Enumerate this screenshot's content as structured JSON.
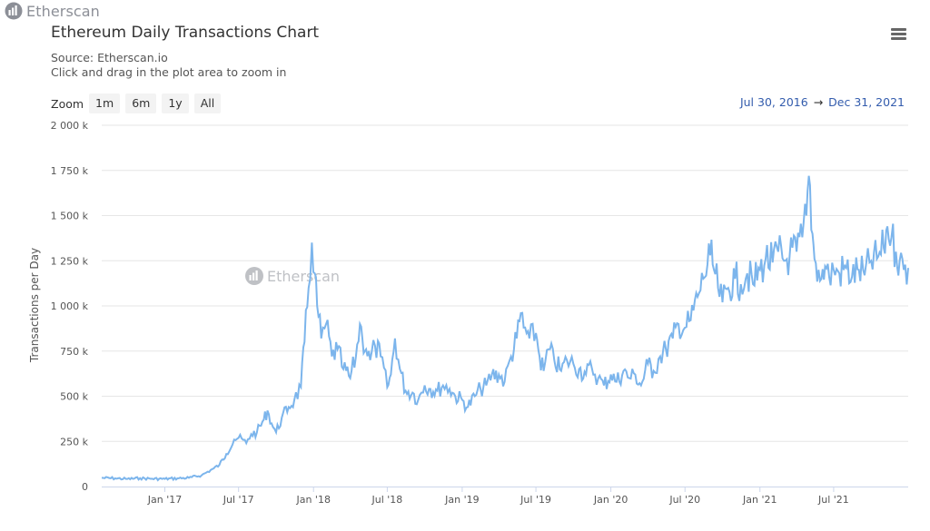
{
  "brand": {
    "name": "Etherscan",
    "logo_icon": "etherscan-bars-icon"
  },
  "header": {
    "title": "Ethereum Daily Transactions Chart",
    "source": "Source: Etherscan.io",
    "hint": "Click and drag in the plot area to zoom in"
  },
  "menu": {
    "icon": "hamburger-menu-icon"
  },
  "zoom": {
    "label": "Zoom",
    "buttons": [
      "1m",
      "6m",
      "1y",
      "All"
    ]
  },
  "range": {
    "from": "Jul 30, 2016",
    "arrow": "→",
    "to": "Dec 31, 2021"
  },
  "watermark": {
    "text": "Etherscan"
  },
  "colors": {
    "line": "#7cb5ec",
    "grid": "#e6e6e6",
    "range_text": "#335cad"
  },
  "chart_data": {
    "type": "line",
    "title": "Ethereum Daily Transactions Chart",
    "ylabel": "Transactions per Day",
    "xlabel": "",
    "ylim": [
      0,
      2000000
    ],
    "xlim": [
      "2016-07-30",
      "2021-12-31"
    ],
    "y_ticks": [
      0,
      250000,
      500000,
      750000,
      1000000,
      1250000,
      1500000,
      1750000,
      2000000
    ],
    "y_tick_labels": [
      "0",
      "250 k",
      "500 k",
      "750 k",
      "1 000 k",
      "1 250 k",
      "1 500 k",
      "1 750 k",
      "2 000 k"
    ],
    "x_ticks": [
      "2017-01-01",
      "2017-07-01",
      "2018-01-01",
      "2018-07-01",
      "2019-01-01",
      "2019-07-01",
      "2020-01-01",
      "2020-07-01",
      "2021-01-01",
      "2021-07-01"
    ],
    "x_tick_labels": [
      "Jan '17",
      "Jul '17",
      "Jan '18",
      "Jul '18",
      "Jan '19",
      "Jul '19",
      "Jan '20",
      "Jul '20",
      "Jan '21",
      "Jul '21"
    ],
    "grid": "horizontal",
    "legend": "none",
    "series": [
      {
        "x": [
          "2016-07-30",
          "2016-09-01",
          "2016-10-01",
          "2016-11-01",
          "2016-12-01",
          "2017-01-01",
          "2017-02-01",
          "2017-03-01",
          "2017-04-01",
          "2017-05-01",
          "2017-05-15",
          "2017-06-01",
          "2017-06-20",
          "2017-07-01",
          "2017-07-20",
          "2017-08-01",
          "2017-08-15",
          "2017-09-01",
          "2017-09-10",
          "2017-09-20",
          "2017-10-01",
          "2017-10-15",
          "2017-11-01",
          "2017-11-15",
          "2017-12-01",
          "2017-12-10",
          "2017-12-20",
          "2017-12-28",
          "2018-01-04",
          "2018-01-10",
          "2018-01-20",
          "2018-02-01",
          "2018-02-15",
          "2018-03-01",
          "2018-03-15",
          "2018-04-01",
          "2018-04-15",
          "2018-04-25",
          "2018-05-01",
          "2018-05-10",
          "2018-05-20",
          "2018-06-01",
          "2018-06-15",
          "2018-07-01",
          "2018-07-10",
          "2018-07-20",
          "2018-08-01",
          "2018-08-15",
          "2018-09-01",
          "2018-09-15",
          "2018-10-01",
          "2018-10-15",
          "2018-11-01",
          "2018-11-15",
          "2018-12-01",
          "2018-12-15",
          "2019-01-01",
          "2019-01-15",
          "2019-02-01",
          "2019-02-15",
          "2019-03-01",
          "2019-03-15",
          "2019-04-01",
          "2019-04-15",
          "2019-05-01",
          "2019-05-15",
          "2019-05-25",
          "2019-06-01",
          "2019-06-15",
          "2019-07-01",
          "2019-07-10",
          "2019-07-20",
          "2019-08-01",
          "2019-08-15",
          "2019-09-01",
          "2019-09-15",
          "2019-10-01",
          "2019-10-15",
          "2019-11-01",
          "2019-11-15",
          "2019-12-01",
          "2019-12-15",
          "2020-01-01",
          "2020-01-15",
          "2020-02-01",
          "2020-02-15",
          "2020-03-01",
          "2020-03-15",
          "2020-04-01",
          "2020-04-15",
          "2020-05-01",
          "2020-05-15",
          "2020-06-01",
          "2020-06-15",
          "2020-07-01",
          "2020-07-15",
          "2020-08-01",
          "2020-08-15",
          "2020-09-01",
          "2020-09-10",
          "2020-09-20",
          "2020-10-01",
          "2020-10-15",
          "2020-11-01",
          "2020-11-15",
          "2020-12-01",
          "2020-12-15",
          "2021-01-01",
          "2021-01-15",
          "2021-02-01",
          "2021-02-15",
          "2021-03-01",
          "2021-03-15",
          "2021-04-01",
          "2021-04-15",
          "2021-04-25",
          "2021-05-01",
          "2021-05-10",
          "2021-05-15",
          "2021-05-25",
          "2021-06-01",
          "2021-06-10",
          "2021-06-20",
          "2021-07-01",
          "2021-07-15",
          "2021-08-01",
          "2021-08-15",
          "2021-09-01",
          "2021-09-15",
          "2021-10-01",
          "2021-10-15",
          "2021-11-01",
          "2021-11-10",
          "2021-11-20",
          "2021-12-01",
          "2021-12-10",
          "2021-12-20",
          "2021-12-31"
        ],
        "y": [
          48000,
          45000,
          42000,
          46000,
          43000,
          42000,
          45000,
          48000,
          62000,
          100000,
          120000,
          180000,
          260000,
          270000,
          240000,
          290000,
          300000,
          370000,
          420000,
          350000,
          300000,
          380000,
          440000,
          480000,
          550000,
          800000,
          1100000,
          1350000,
          1180000,
          1000000,
          820000,
          900000,
          720000,
          760000,
          650000,
          600000,
          720000,
          900000,
          820000,
          760000,
          700000,
          780000,
          720000,
          550000,
          620000,
          820000,
          650000,
          530000,
          520000,
          480000,
          560000,
          540000,
          530000,
          560000,
          540000,
          500000,
          480000,
          440000,
          500000,
          540000,
          560000,
          620000,
          620000,
          580000,
          720000,
          820000,
          960000,
          880000,
          820000,
          850000,
          720000,
          640000,
          760000,
          700000,
          640000,
          700000,
          680000,
          650000,
          620000,
          660000,
          600000,
          560000,
          620000,
          580000,
          640000,
          600000,
          620000,
          560000,
          680000,
          640000,
          720000,
          760000,
          820000,
          900000,
          880000,
          920000,
          1050000,
          1150000,
          1280000,
          1200000,
          1100000,
          1020000,
          1100000,
          1150000,
          1120000,
          1180000,
          1120000,
          1200000,
          1260000,
          1240000,
          1300000,
          1250000,
          1280000,
          1300000,
          1380000,
          1500000,
          1720000,
          1400000,
          1260000,
          1200000,
          1150000,
          1220000,
          1160000,
          1200000,
          1180000,
          1210000,
          1160000,
          1200000,
          1170000,
          1250000,
          1260000,
          1320000,
          1440000,
          1380000,
          1300000,
          1250000,
          1200000,
          1210000
        ]
      }
    ]
  }
}
